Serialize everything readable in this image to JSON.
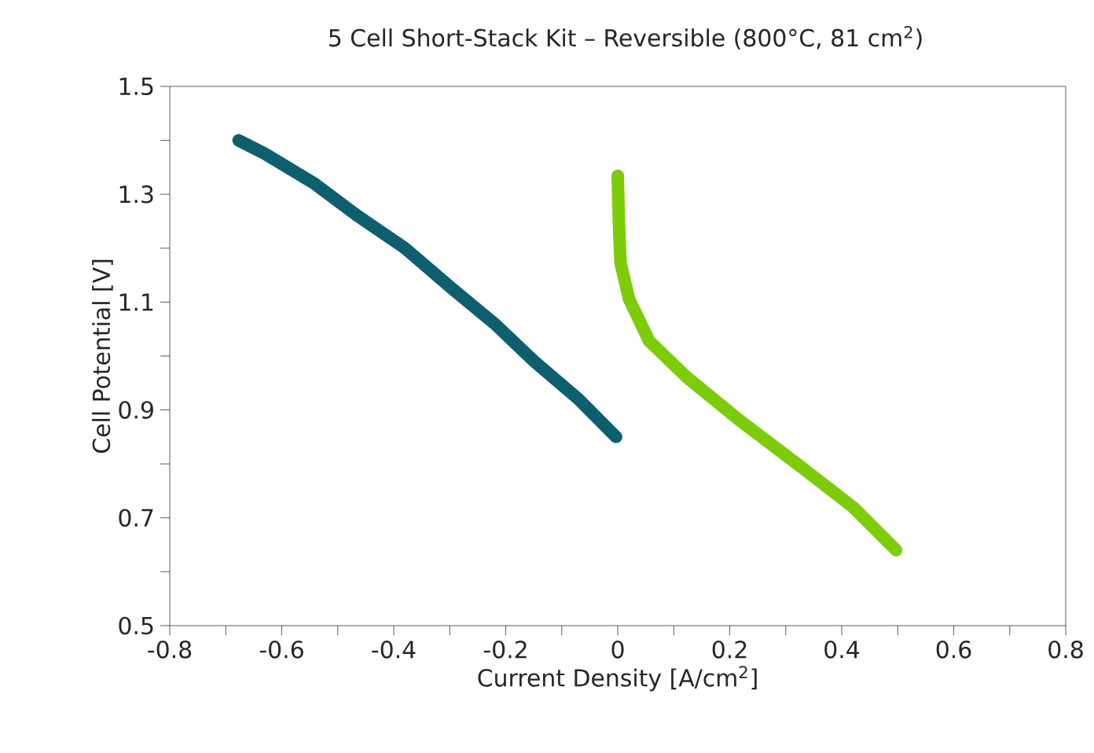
{
  "chart_data": {
    "type": "line",
    "title": "5 Cell Short-Stack Kit – Reversible (800°C, 81 cm$^{2}$)",
    "xlabel": "Current Density [A/cm$^{2}$]",
    "ylabel": "Cell Potential [V]",
    "xlim": [
      -0.8,
      0.8
    ],
    "ylim": [
      0.5,
      1.5
    ],
    "xticks": [
      -0.8,
      -0.6,
      -0.4,
      -0.2,
      0,
      0.2,
      0.4,
      0.6,
      0.8
    ],
    "yticks": [
      0.5,
      0.7,
      0.9,
      1.1,
      1.3,
      1.5
    ],
    "grid": false,
    "series": [
      {
        "color": "#0e5f6e",
        "x": [
          -0.677,
          -0.63,
          -0.542,
          -0.466,
          -0.38,
          -0.298,
          -0.22,
          -0.149,
          -0.07,
          -0.003
        ],
        "values": [
          1.4,
          1.375,
          1.32,
          1.261,
          1.2,
          1.127,
          1.06,
          0.99,
          0.92,
          0.85
        ]
      },
      {
        "color": "#7ccc0a",
        "x": [
          0,
          0.002,
          0.005,
          0.02,
          0.056,
          0.123,
          0.216,
          0.328,
          0.421,
          0.497
        ],
        "values": [
          1.334,
          1.25,
          1.173,
          1.106,
          1.028,
          0.961,
          0.882,
          0.794,
          0.719,
          0.64
        ]
      }
    ]
  }
}
